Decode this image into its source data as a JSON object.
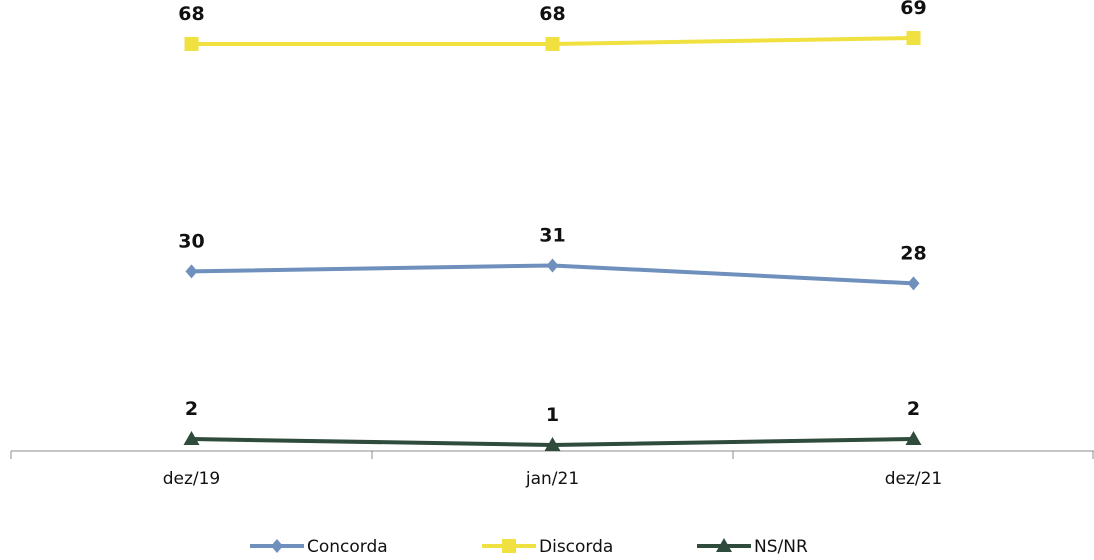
{
  "chart_data": {
    "type": "line",
    "categories": [
      "dez/19",
      "jan/21",
      "dez/21"
    ],
    "series": [
      {
        "name": "Concorda",
        "values": [
          30,
          31,
          28
        ],
        "color": "#6f8fbd",
        "marker": "diamond"
      },
      {
        "name": "Discorda",
        "values": [
          68,
          68,
          69
        ],
        "color": "#f0e040",
        "marker": "square"
      },
      {
        "name": "NS/NR",
        "values": [
          2,
          1,
          2
        ],
        "color": "#2e4b3c",
        "marker": "triangle"
      }
    ],
    "data_labels": [
      [
        "30",
        "31",
        "28"
      ],
      [
        "68",
        "68",
        "69"
      ],
      [
        "2",
        "1",
        "2"
      ]
    ],
    "title": "",
    "xlabel": "",
    "ylabel": "",
    "ylim": [
      0,
      70
    ],
    "grid": false,
    "legend_position": "bottom"
  }
}
